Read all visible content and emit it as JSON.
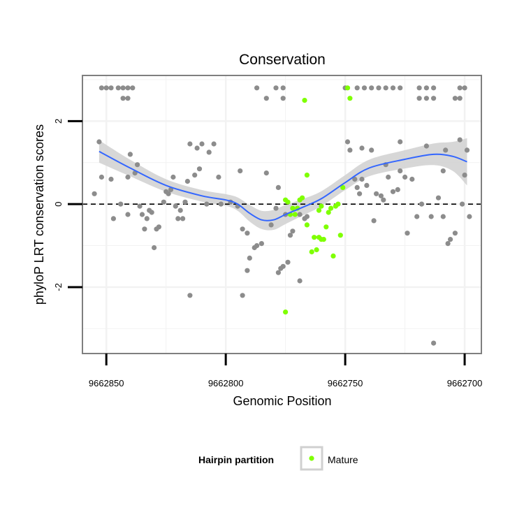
{
  "chart_data": {
    "type": "scatter",
    "title": "Conservation",
    "xlabel": "Genomic Position",
    "ylabel": "phyloP LRT conservation scores",
    "x_reversed": true,
    "xlim": [
      9662860,
      9662693
    ],
    "ylim": [
      -3.6,
      3.1
    ],
    "x_ticks": [
      9662850,
      9662800,
      9662750,
      9662700
    ],
    "x_tick_labels": [
      "9662850",
      "9662800",
      "9662750",
      "9662700"
    ],
    "y_ticks": [
      -2,
      0,
      2
    ],
    "y_tick_labels": [
      "-2",
      "0",
      "2"
    ],
    "grid": true,
    "reference_line": {
      "y": 0,
      "style": "dashed"
    },
    "legend": {
      "title": "Hairpin partition",
      "position": "bottom",
      "entries": [
        "Mature"
      ]
    },
    "colors": {
      "other": "#8c8c8c",
      "mature": "#7fff00",
      "smooth": "#3366ff",
      "ribbon": "#d3d3d3",
      "panel_border": "#7f7f7f",
      "grid": "#f2f2f2"
    },
    "series": [
      {
        "group": "other",
        "points": [
          [
            9662852,
            2.8
          ],
          [
            9662850,
            2.8
          ],
          [
            9662848,
            2.8
          ],
          [
            9662845,
            2.8
          ],
          [
            9662843,
            2.8
          ],
          [
            9662841,
            2.8
          ],
          [
            9662839,
            2.8
          ],
          [
            9662843,
            2.55
          ],
          [
            9662841,
            2.55
          ],
          [
            9662787,
            2.8
          ],
          [
            9662779,
            2.8
          ],
          [
            9662776,
            2.8
          ],
          [
            9662783,
            2.55
          ],
          [
            9662776,
            2.55
          ],
          [
            9662750,
            2.8
          ],
          [
            9662745,
            2.8
          ],
          [
            9662742,
            2.8
          ],
          [
            9662739,
            2.8
          ],
          [
            9662736,
            2.8
          ],
          [
            9662733,
            2.8
          ],
          [
            9662730,
            2.8
          ],
          [
            9662727,
            2.8
          ],
          [
            9662719,
            2.8
          ],
          [
            9662716,
            2.8
          ],
          [
            9662713,
            2.8
          ],
          [
            9662702,
            2.8
          ],
          [
            9662700,
            2.8
          ],
          [
            9662719,
            2.55
          ],
          [
            9662716,
            2.55
          ],
          [
            9662713,
            2.55
          ],
          [
            9662704,
            2.55
          ],
          [
            9662702,
            2.55
          ],
          [
            9662853,
            1.5
          ],
          [
            9662852,
            0.65
          ],
          [
            9662848,
            0.6
          ],
          [
            9662855,
            0.25
          ],
          [
            9662847,
            -0.35
          ],
          [
            9662844,
            0.0
          ],
          [
            9662841,
            -0.25
          ],
          [
            9662840,
            1.2
          ],
          [
            9662838,
            0.75
          ],
          [
            9662837,
            0.95
          ],
          [
            9662841,
            0.65
          ],
          [
            9662836,
            -0.05
          ],
          [
            9662835,
            -0.25
          ],
          [
            9662834,
            -0.6
          ],
          [
            9662833,
            -0.35
          ],
          [
            9662832,
            -0.15
          ],
          [
            9662831,
            -0.2
          ],
          [
            9662830,
            -1.05
          ],
          [
            9662828,
            -0.55
          ],
          [
            9662829,
            -0.6
          ],
          [
            9662826,
            0.05
          ],
          [
            9662825,
            0.3
          ],
          [
            9662824,
            0.25
          ],
          [
            9662823,
            0.35
          ],
          [
            9662822,
            0.65
          ],
          [
            9662821,
            -0.05
          ],
          [
            9662820,
            -0.35
          ],
          [
            9662819,
            -0.15
          ],
          [
            9662818,
            -0.35
          ],
          [
            9662817,
            0.05
          ],
          [
            9662816,
            0.55
          ],
          [
            9662815,
            -2.2
          ],
          [
            9662815,
            1.45
          ],
          [
            9662812,
            1.35
          ],
          [
            9662810,
            1.45
          ],
          [
            9662807,
            1.25
          ],
          [
            9662805,
            1.45
          ],
          [
            9662813,
            0.7
          ],
          [
            9662811,
            0.85
          ],
          [
            9662808,
            0.0
          ],
          [
            9662803,
            0.65
          ],
          [
            9662802,
            0.0
          ],
          [
            9662798,
            0.05
          ],
          [
            9662795,
            -0.05
          ],
          [
            9662794,
            0.8
          ],
          [
            9662793,
            -2.2
          ],
          [
            9662793,
            -0.6
          ],
          [
            9662791,
            -0.7
          ],
          [
            9662791,
            -1.6
          ],
          [
            9662790,
            -1.3
          ],
          [
            9662788,
            -1.05
          ],
          [
            9662787,
            -1.0
          ],
          [
            9662785,
            -0.95
          ],
          [
            9662783,
            0.75
          ],
          [
            9662781,
            -0.5
          ],
          [
            9662779,
            -0.1
          ],
          [
            9662778,
            -1.65
          ],
          [
            9662778,
            0.4
          ],
          [
            9662777,
            -1.55
          ],
          [
            9662776,
            -1.5
          ],
          [
            9662775,
            -0.25
          ],
          [
            9662774,
            -1.4
          ],
          [
            9662773,
            -0.75
          ],
          [
            9662772,
            -0.65
          ],
          [
            9662769,
            -0.25
          ],
          [
            9662767,
            -0.35
          ],
          [
            9662766,
            -0.3
          ],
          [
            9662769,
            -1.85
          ],
          [
            9662749,
            1.5
          ],
          [
            9662748,
            1.3
          ],
          [
            9662746,
            0.6
          ],
          [
            9662745,
            0.4
          ],
          [
            9662744,
            0.25
          ],
          [
            9662743,
            0.6
          ],
          [
            9662743,
            1.35
          ],
          [
            9662741,
            0.45
          ],
          [
            9662739,
            1.3
          ],
          [
            9662738,
            -0.4
          ],
          [
            9662737,
            0.25
          ],
          [
            9662735,
            0.2
          ],
          [
            9662734,
            0.1
          ],
          [
            9662733,
            0.95
          ],
          [
            9662732,
            0.65
          ],
          [
            9662730,
            0.3
          ],
          [
            9662728,
            0.35
          ],
          [
            9662727,
            1.5
          ],
          [
            9662727,
            0.8
          ],
          [
            9662725,
            0.65
          ],
          [
            9662724,
            -0.7
          ],
          [
            9662722,
            0.6
          ],
          [
            9662720,
            -0.3
          ],
          [
            9662718,
            0.0
          ],
          [
            9662716,
            1.4
          ],
          [
            9662714,
            -0.3
          ],
          [
            9662713,
            -3.35
          ],
          [
            9662711,
            0.15
          ],
          [
            9662709,
            0.8
          ],
          [
            9662708,
            1.3
          ],
          [
            9662707,
            -0.95
          ],
          [
            9662706,
            -0.85
          ],
          [
            9662704,
            -0.7
          ],
          [
            9662702,
            1.55
          ],
          [
            9662701,
            0.0
          ],
          [
            9662700,
            0.7
          ],
          [
            9662699,
            1.3
          ],
          [
            9662698,
            -0.3
          ],
          [
            9662709,
            -0.3
          ]
        ]
      },
      {
        "group": "Mature",
        "name": "Mature",
        "points": [
          [
            9662749,
            2.8
          ],
          [
            9662748,
            2.55
          ],
          [
            9662767,
            2.5
          ],
          [
            9662775,
            0.1
          ],
          [
            9662774,
            0.05
          ],
          [
            9662772,
            -0.1
          ],
          [
            9662773,
            -0.25
          ],
          [
            9662771,
            -0.25
          ],
          [
            9662770,
            -0.1
          ],
          [
            9662769,
            0.1
          ],
          [
            9662768,
            0.15
          ],
          [
            9662766,
            0.7
          ],
          [
            9662766,
            -0.5
          ],
          [
            9662764,
            -1.15
          ],
          [
            9662763,
            -0.8
          ],
          [
            9662762,
            -1.1
          ],
          [
            9662761,
            -0.8
          ],
          [
            9662760,
            -0.85
          ],
          [
            9662759,
            -0.85
          ],
          [
            9662761,
            -0.15
          ],
          [
            9662760,
            -0.05
          ],
          [
            9662758,
            -0.55
          ],
          [
            9662757,
            -0.2
          ],
          [
            9662756,
            -0.1
          ],
          [
            9662755,
            -1.25
          ],
          [
            9662754,
            -0.05
          ],
          [
            9662753,
            0.0
          ],
          [
            9662752,
            -0.75
          ],
          [
            9662751,
            0.4
          ],
          [
            9662775,
            -2.6
          ]
        ]
      }
    ],
    "smooth": [
      [
        9662853,
        1.27,
        1.0,
        1.54
      ],
      [
        9662840,
        0.87,
        0.67,
        1.07
      ],
      [
        9662825,
        0.45,
        0.3,
        0.6
      ],
      [
        9662810,
        0.2,
        0.06,
        0.34
      ],
      [
        9662800,
        0.1,
        -0.04,
        0.24
      ],
      [
        9662795,
        0.0,
        -0.16,
        0.16
      ],
      [
        9662790,
        -0.22,
        -0.42,
        -0.02
      ],
      [
        9662785,
        -0.38,
        -0.6,
        -0.16
      ],
      [
        9662780,
        -0.38,
        -0.62,
        -0.14
      ],
      [
        9662775,
        -0.25,
        -0.48,
        -0.02
      ],
      [
        9662768,
        -0.08,
        -0.28,
        0.12
      ],
      [
        9662760,
        0.13,
        -0.05,
        0.31
      ],
      [
        9662750,
        0.52,
        0.34,
        0.7
      ],
      [
        9662740,
        0.87,
        0.67,
        1.07
      ],
      [
        9662725,
        1.08,
        0.86,
        1.3
      ],
      [
        9662713,
        1.2,
        0.94,
        1.46
      ],
      [
        9662705,
        1.15,
        0.8,
        1.5
      ],
      [
        9662699,
        1.02,
        0.45,
        1.59
      ]
    ]
  }
}
